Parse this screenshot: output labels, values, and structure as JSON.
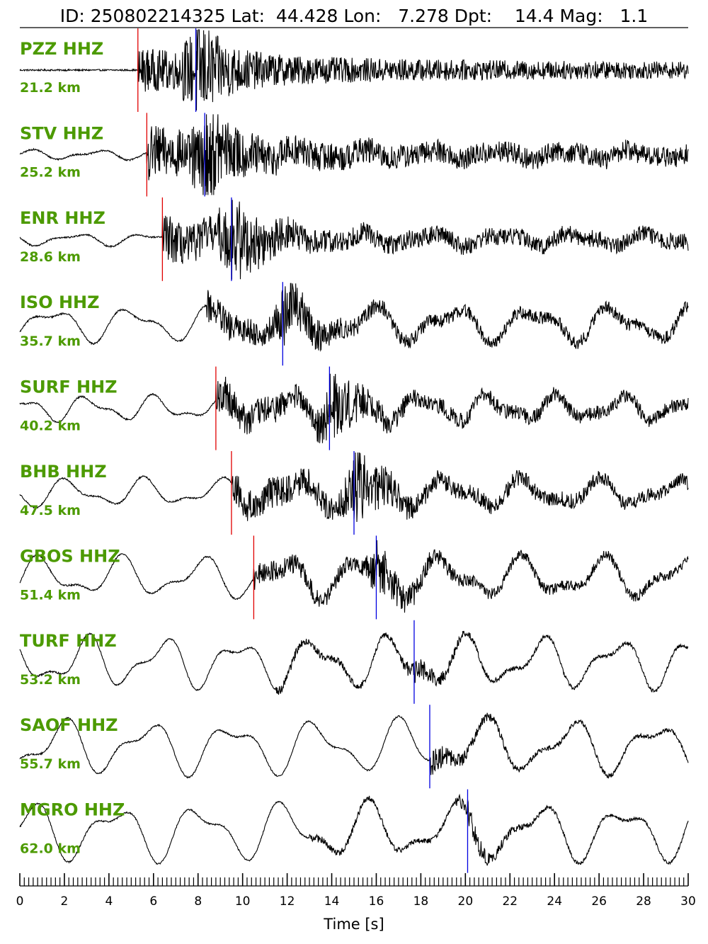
{
  "colors": {
    "label": "#4c9a00",
    "p_pick": "#e00000",
    "s_pick": "#0000e0",
    "trace": "#000000"
  },
  "chart_data": {
    "type": "line",
    "title": "ID: 250802214325 Lat:  44.428 Lon:   7.278 Dpt:    14.4 Mag:   1.1",
    "xlabel": "Time [s]",
    "xlim": [
      0,
      30
    ],
    "x_ticks": [
      "0",
      "2",
      "4",
      "6",
      "8",
      "10",
      "12",
      "14",
      "16",
      "18",
      "20",
      "22",
      "24",
      "26",
      "28",
      "30"
    ],
    "traces": [
      {
        "station": "PZZ HHZ",
        "distance": "21.2 km",
        "p_pick": 5.3,
        "s_pick": 7.9,
        "onset": 5.3,
        "lp": 0.0,
        "lp_period": 3.0,
        "hf": 0.55,
        "decay": 0.12,
        "burst": 1.0
      },
      {
        "station": "STV HHZ",
        "distance": "25.2 km",
        "p_pick": 5.7,
        "s_pick": 8.3,
        "onset": 5.7,
        "lp": 0.15,
        "lp_period": 3.0,
        "hf": 0.7,
        "decay": 0.18,
        "burst": 0.8
      },
      {
        "station": "ENR HHZ",
        "distance": "28.6 km",
        "p_pick": 6.4,
        "s_pick": 9.5,
        "onset": 6.4,
        "lp": 0.2,
        "lp_period": 3.2,
        "hf": 0.6,
        "decay": 0.25,
        "burst": 0.9
      },
      {
        "station": "ISO HHZ",
        "distance": "35.7 km",
        "p_pick": null,
        "s_pick": 11.8,
        "onset": 8.4,
        "lp": 0.55,
        "lp_period": 3.6,
        "hf": 0.45,
        "decay": 0.3,
        "burst": 0.7
      },
      {
        "station": "SURF HHZ",
        "distance": "40.2 km",
        "p_pick": 8.8,
        "s_pick": 13.9,
        "onset": 8.8,
        "lp": 0.4,
        "lp_period": 3.0,
        "hf": 0.5,
        "decay": 0.25,
        "burst": 0.8
      },
      {
        "station": "BHB HHZ",
        "distance": "47.5 km",
        "p_pick": 9.5,
        "s_pick": 15.0,
        "onset": 9.5,
        "lp": 0.45,
        "lp_period": 3.4,
        "hf": 0.45,
        "decay": 0.15,
        "burst": 0.8
      },
      {
        "station": "GBOS HHZ",
        "distance": "51.4 km",
        "p_pick": 10.5,
        "s_pick": 16.0,
        "onset": 10.5,
        "lp": 0.65,
        "lp_period": 3.6,
        "hf": 0.3,
        "decay": 0.15,
        "burst": 0.6
      },
      {
        "station": "TURF HHZ",
        "distance": "53.2 km",
        "p_pick": null,
        "s_pick": 17.7,
        "onset": 11.5,
        "lp": 0.8,
        "lp_period": 3.4,
        "hf": 0.12,
        "decay": 0.2,
        "burst": 0.3
      },
      {
        "station": "SAOF HHZ",
        "distance": "55.7 km",
        "p_pick": null,
        "s_pick": 18.4,
        "onset": 18.4,
        "lp": 0.85,
        "lp_period": 3.8,
        "hf": 0.12,
        "decay": 0.25,
        "burst": 0.3
      },
      {
        "station": "MGRO HHZ",
        "distance": "62.0 km",
        "p_pick": null,
        "s_pick": 20.1,
        "onset": 13.0,
        "lp": 0.9,
        "lp_period": 3.8,
        "hf": 0.1,
        "decay": 0.2,
        "burst": 0.3
      }
    ]
  }
}
